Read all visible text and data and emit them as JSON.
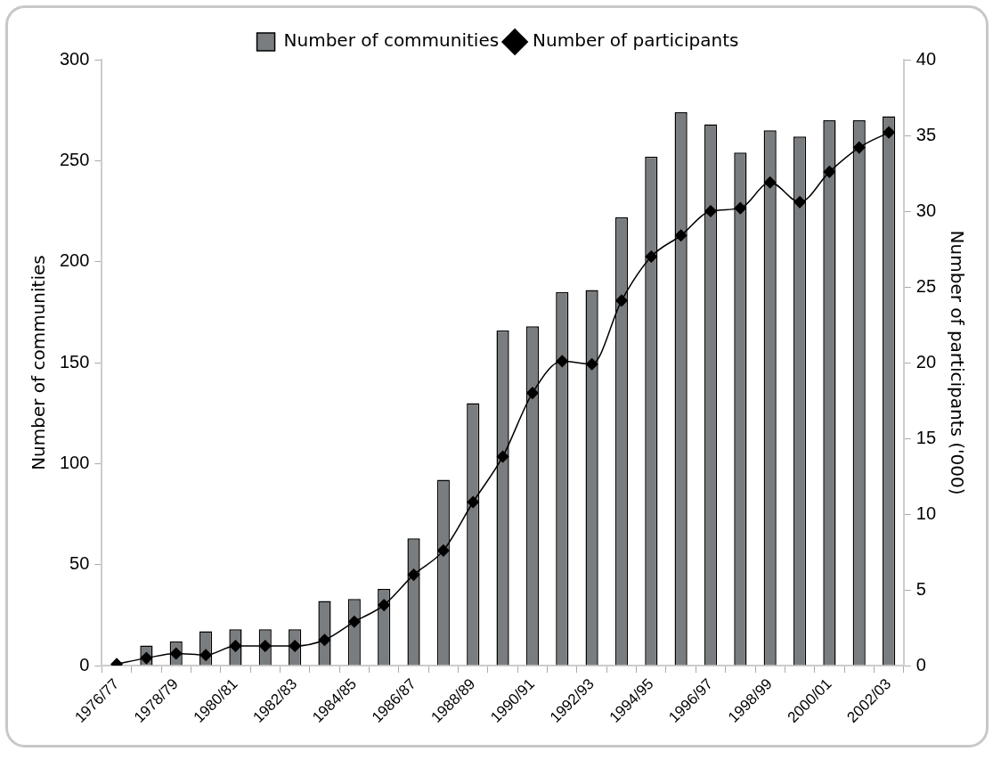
{
  "chart_data": {
    "type": "bar",
    "categories": [
      "1976/77",
      null,
      "1978/79",
      null,
      "1980/81",
      null,
      "1982/83",
      null,
      "1984/85",
      null,
      "1986/87",
      null,
      "1988/89",
      null,
      "1990/91",
      null,
      "1992/93",
      null,
      "1994/95",
      null,
      "1996/97",
      null,
      "1998/99",
      null,
      "2000/01",
      null,
      "2002/03"
    ],
    "series": [
      {
        "name": "Number of communities",
        "color": "#7a7d80",
        "values": [
          null,
          10,
          12,
          17,
          18,
          18,
          18,
          32,
          33,
          38,
          63,
          92,
          130,
          166,
          168,
          185,
          186,
          222,
          252,
          274,
          268,
          254,
          265,
          262,
          270,
          270,
          272
        ]
      },
      {
        "name": "Number of participants",
        "type": "line",
        "axis": "y2",
        "color": "#000000",
        "marker": "diamond",
        "values": [
          0.1,
          0.5,
          0.8,
          0.7,
          1.3,
          1.3,
          1.3,
          1.7,
          2.9,
          4.0,
          6.0,
          7.6,
          10.8,
          13.8,
          18.0,
          20.1,
          19.9,
          24.1,
          27.0,
          28.4,
          30.0,
          30.2,
          31.9,
          30.6,
          32.6,
          34.2,
          35.2
        ]
      }
    ],
    "ylabel": "Number of communities",
    "y2label": "Number of participants ('000)",
    "ylim": [
      0,
      300
    ],
    "yticks": [
      0,
      50,
      100,
      150,
      200,
      250,
      300
    ],
    "y2lim": [
      0,
      40
    ],
    "y2ticks": [
      0,
      5,
      10,
      15,
      20,
      25,
      30,
      35,
      40
    ],
    "grid": false,
    "legend": "top"
  }
}
